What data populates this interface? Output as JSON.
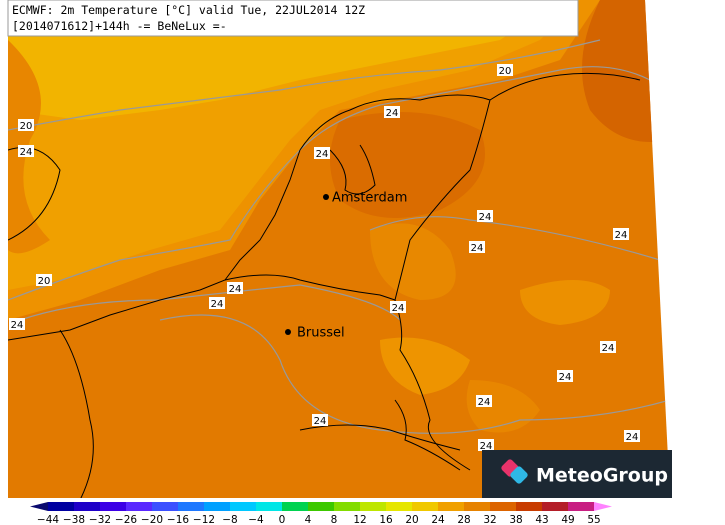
{
  "header": {
    "line1": "ECMWF: 2m Temperature [°C] valid Tue, 22JUL2014 12Z",
    "line2": "[2014071612]+144h -= BeNeLux =-"
  },
  "cities": [
    {
      "label": "Amsterdam"
    },
    {
      "label": "Brussel"
    }
  ],
  "contour_labels": [
    "20",
    "24",
    "24",
    "24",
    "20",
    "24",
    "24",
    "24",
    "20",
    "24",
    "24",
    "24",
    "24",
    "24",
    "24",
    "24",
    "24",
    "24",
    "24"
  ],
  "colorbar": {
    "ticks": [
      "−44",
      "−38",
      "−32",
      "−26",
      "−20",
      "−16",
      "−12",
      "−8",
      "−4",
      "0",
      "4",
      "8",
      "12",
      "16",
      "20",
      "24",
      "28",
      "32",
      "38",
      "43",
      "49",
      "55"
    ],
    "colors": [
      "#0a0a6e",
      "#0000a0",
      "#1e00c8",
      "#3c00e6",
      "#5a28ff",
      "#3c50ff",
      "#1e78ff",
      "#00a0ff",
      "#00c8ff",
      "#00e6e6",
      "#00d250",
      "#3cc800",
      "#82dc00",
      "#bee600",
      "#e6e600",
      "#f0c800",
      "#f0a000",
      "#e68200",
      "#dc6400",
      "#c83c00",
      "#b41e28",
      "#c81e82",
      "#e632c8",
      "#ff82ff"
    ]
  },
  "logo": {
    "text": "MeteoGroup"
  }
}
